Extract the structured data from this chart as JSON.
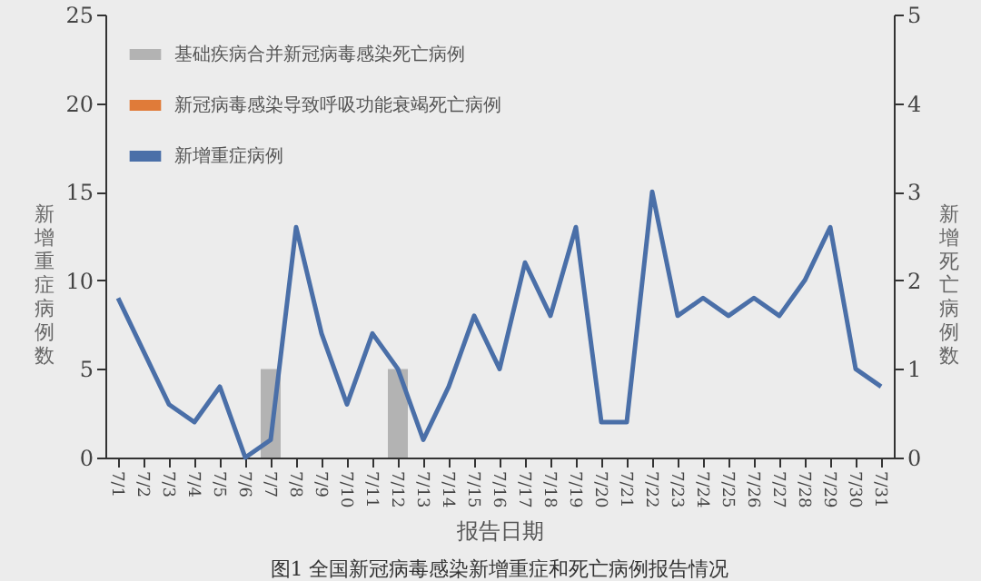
{
  "chart_data": {
    "type": "bar",
    "xlabel": "报告日期",
    "ylabel": "新增重症病例数",
    "y2label": "新增死亡病例数",
    "categories": [
      "7/1",
      "7/2",
      "7/3",
      "7/4",
      "7/5",
      "7/6",
      "7/7",
      "7/8",
      "7/9",
      "7/10",
      "7/11",
      "7/12",
      "7/13",
      "7/14",
      "7/15",
      "7/16",
      "7/17",
      "7/18",
      "7/19",
      "7/20",
      "7/21",
      "7/22",
      "7/23",
      "7/24",
      "7/25",
      "7/26",
      "7/27",
      "7/28",
      "7/29",
      "7/30",
      "7/31"
    ],
    "series": [
      {
        "name": "基础疾病合并新冠病毒感染死亡病例",
        "axis": "y2",
        "color": "#b3b3b3",
        "values": [
          null,
          null,
          null,
          null,
          null,
          null,
          1,
          null,
          null,
          null,
          null,
          1,
          null,
          null,
          null,
          null,
          null,
          null,
          null,
          null,
          null,
          null,
          null,
          null,
          null,
          null,
          null,
          null,
          null,
          null,
          null
        ]
      },
      {
        "name": "新冠病毒感染导致呼吸功能衰竭死亡病例",
        "axis": "y2",
        "color": "#e07b39",
        "values": [
          null,
          null,
          null,
          null,
          null,
          null,
          null,
          null,
          null,
          null,
          null,
          null,
          null,
          null,
          null,
          null,
          null,
          null,
          null,
          null,
          null,
          null,
          null,
          null,
          null,
          null,
          null,
          null,
          null,
          null,
          null
        ]
      },
      {
        "name": "新增重症病例",
        "type": "line",
        "color": "#4a6fa8",
        "values": [
          9,
          6,
          3,
          2,
          4,
          0,
          1,
          13,
          7,
          3,
          7,
          5,
          1,
          4,
          8,
          5,
          11,
          8,
          13,
          2,
          2,
          15,
          8,
          9,
          8,
          9,
          8,
          10,
          13,
          5,
          4
        ]
      }
    ],
    "ylim": [
      0,
      25
    ],
    "yticks": [
      0,
      5,
      10,
      15,
      20,
      25
    ],
    "y2lim": [
      0,
      5
    ],
    "y2ticks": [
      0,
      1,
      2,
      3,
      4,
      5
    ],
    "legend": "top left",
    "annotations": [
      "图1 全国新冠病毒感染新增重症和死亡病例报告情况"
    ]
  }
}
